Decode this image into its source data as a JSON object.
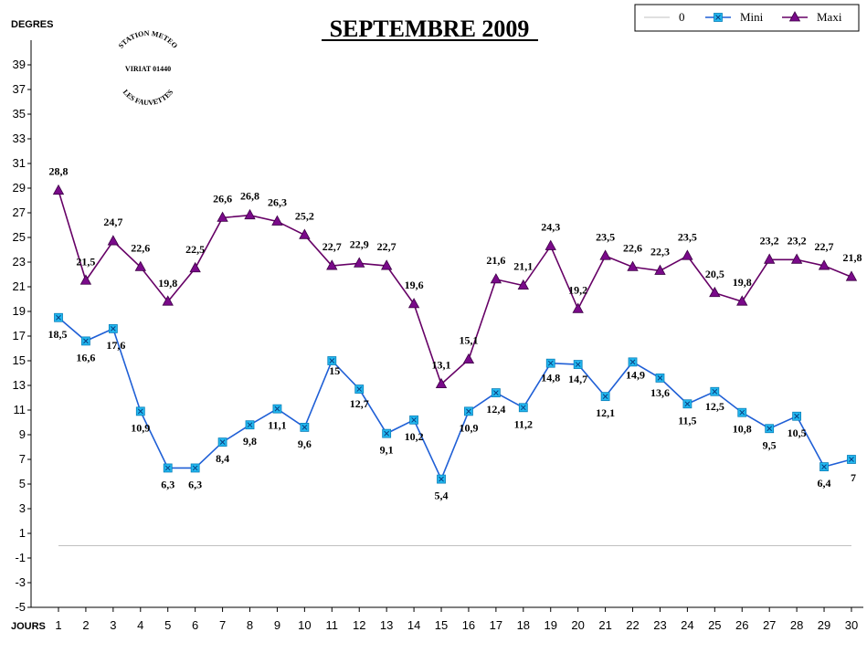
{
  "chart_data": {
    "type": "line",
    "title": "SEPTEMBRE 2009",
    "ylabel": "DEGRES",
    "xlabel": "JOURS",
    "ylim": [
      -5,
      41
    ],
    "y_ticks": [
      -5,
      -3,
      -1,
      1,
      3,
      5,
      7,
      9,
      11,
      13,
      15,
      17,
      19,
      21,
      23,
      25,
      27,
      29,
      31,
      33,
      35,
      37,
      39
    ],
    "x": [
      1,
      2,
      3,
      4,
      5,
      6,
      7,
      8,
      9,
      10,
      11,
      12,
      13,
      14,
      15,
      16,
      17,
      18,
      19,
      20,
      21,
      22,
      23,
      24,
      25,
      26,
      27,
      28,
      29,
      30
    ],
    "legend_position": "top-right",
    "series": [
      {
        "name": "0",
        "color": "#c0c0c0",
        "marker": "none",
        "values": [
          0,
          0,
          0,
          0,
          0,
          0,
          0,
          0,
          0,
          0,
          0,
          0,
          0,
          0,
          0,
          0,
          0,
          0,
          0,
          0,
          0,
          0,
          0,
          0,
          0,
          0,
          0,
          0,
          0,
          0
        ],
        "labels": []
      },
      {
        "name": "Mini",
        "color": "#1f5fd6",
        "marker_color": "#22b8f0",
        "marker": "square-x",
        "values": [
          18.5,
          16.6,
          17.6,
          10.9,
          6.3,
          6.3,
          8.4,
          9.8,
          11.1,
          9.6,
          15,
          12.7,
          9.1,
          10.2,
          5.4,
          10.9,
          12.4,
          11.2,
          14.8,
          14.7,
          12.1,
          14.9,
          13.6,
          11.5,
          12.5,
          10.8,
          9.5,
          10.5,
          6.4,
          7
        ],
        "labels": [
          "18,5",
          "16,6",
          "17,6",
          "10,9",
          "6,3",
          "6,3",
          "8,4",
          "9,8",
          "11,1",
          "9,6",
          "15",
          "12,7",
          "9,1",
          "10,2",
          "5,4",
          "10,9",
          "12,4",
          "11,2",
          "14,8",
          "14,7",
          "12,1",
          "14,9",
          "13,6",
          "11,5",
          "12,5",
          "10,8",
          "9,5",
          "10,5",
          "6,4",
          "7"
        ]
      },
      {
        "name": "Maxi",
        "color": "#660066",
        "marker_color": "#7a0a8a",
        "marker": "triangle",
        "values": [
          28.8,
          21.5,
          24.7,
          22.6,
          19.8,
          22.5,
          26.6,
          26.8,
          26.3,
          25.2,
          22.7,
          22.9,
          22.7,
          19.6,
          13.1,
          15.1,
          21.6,
          21.1,
          24.3,
          19.2,
          23.5,
          22.6,
          22.3,
          23.5,
          20.5,
          19.8,
          23.2,
          23.2,
          22.7,
          21.8
        ],
        "labels": [
          "28,8",
          "21,5",
          "24,7",
          "22,6",
          "19,8",
          "22,5",
          "26,6",
          "26,8",
          "26,3",
          "25,2",
          "22,7",
          "22,9",
          "22,7",
          "19,6",
          "13,1",
          "15,1",
          "21,6",
          "21,1",
          "24,3",
          "19,2",
          "23,5",
          "22,6",
          "22,3",
          "23,5",
          "20,5",
          "19,8",
          "23,2",
          "23,2",
          "22,7",
          "21,8"
        ]
      }
    ]
  },
  "stamp": {
    "line1": "STATION METEO",
    "line2": "VIRIAT 01440",
    "line3": "LES FAUVETTES"
  }
}
